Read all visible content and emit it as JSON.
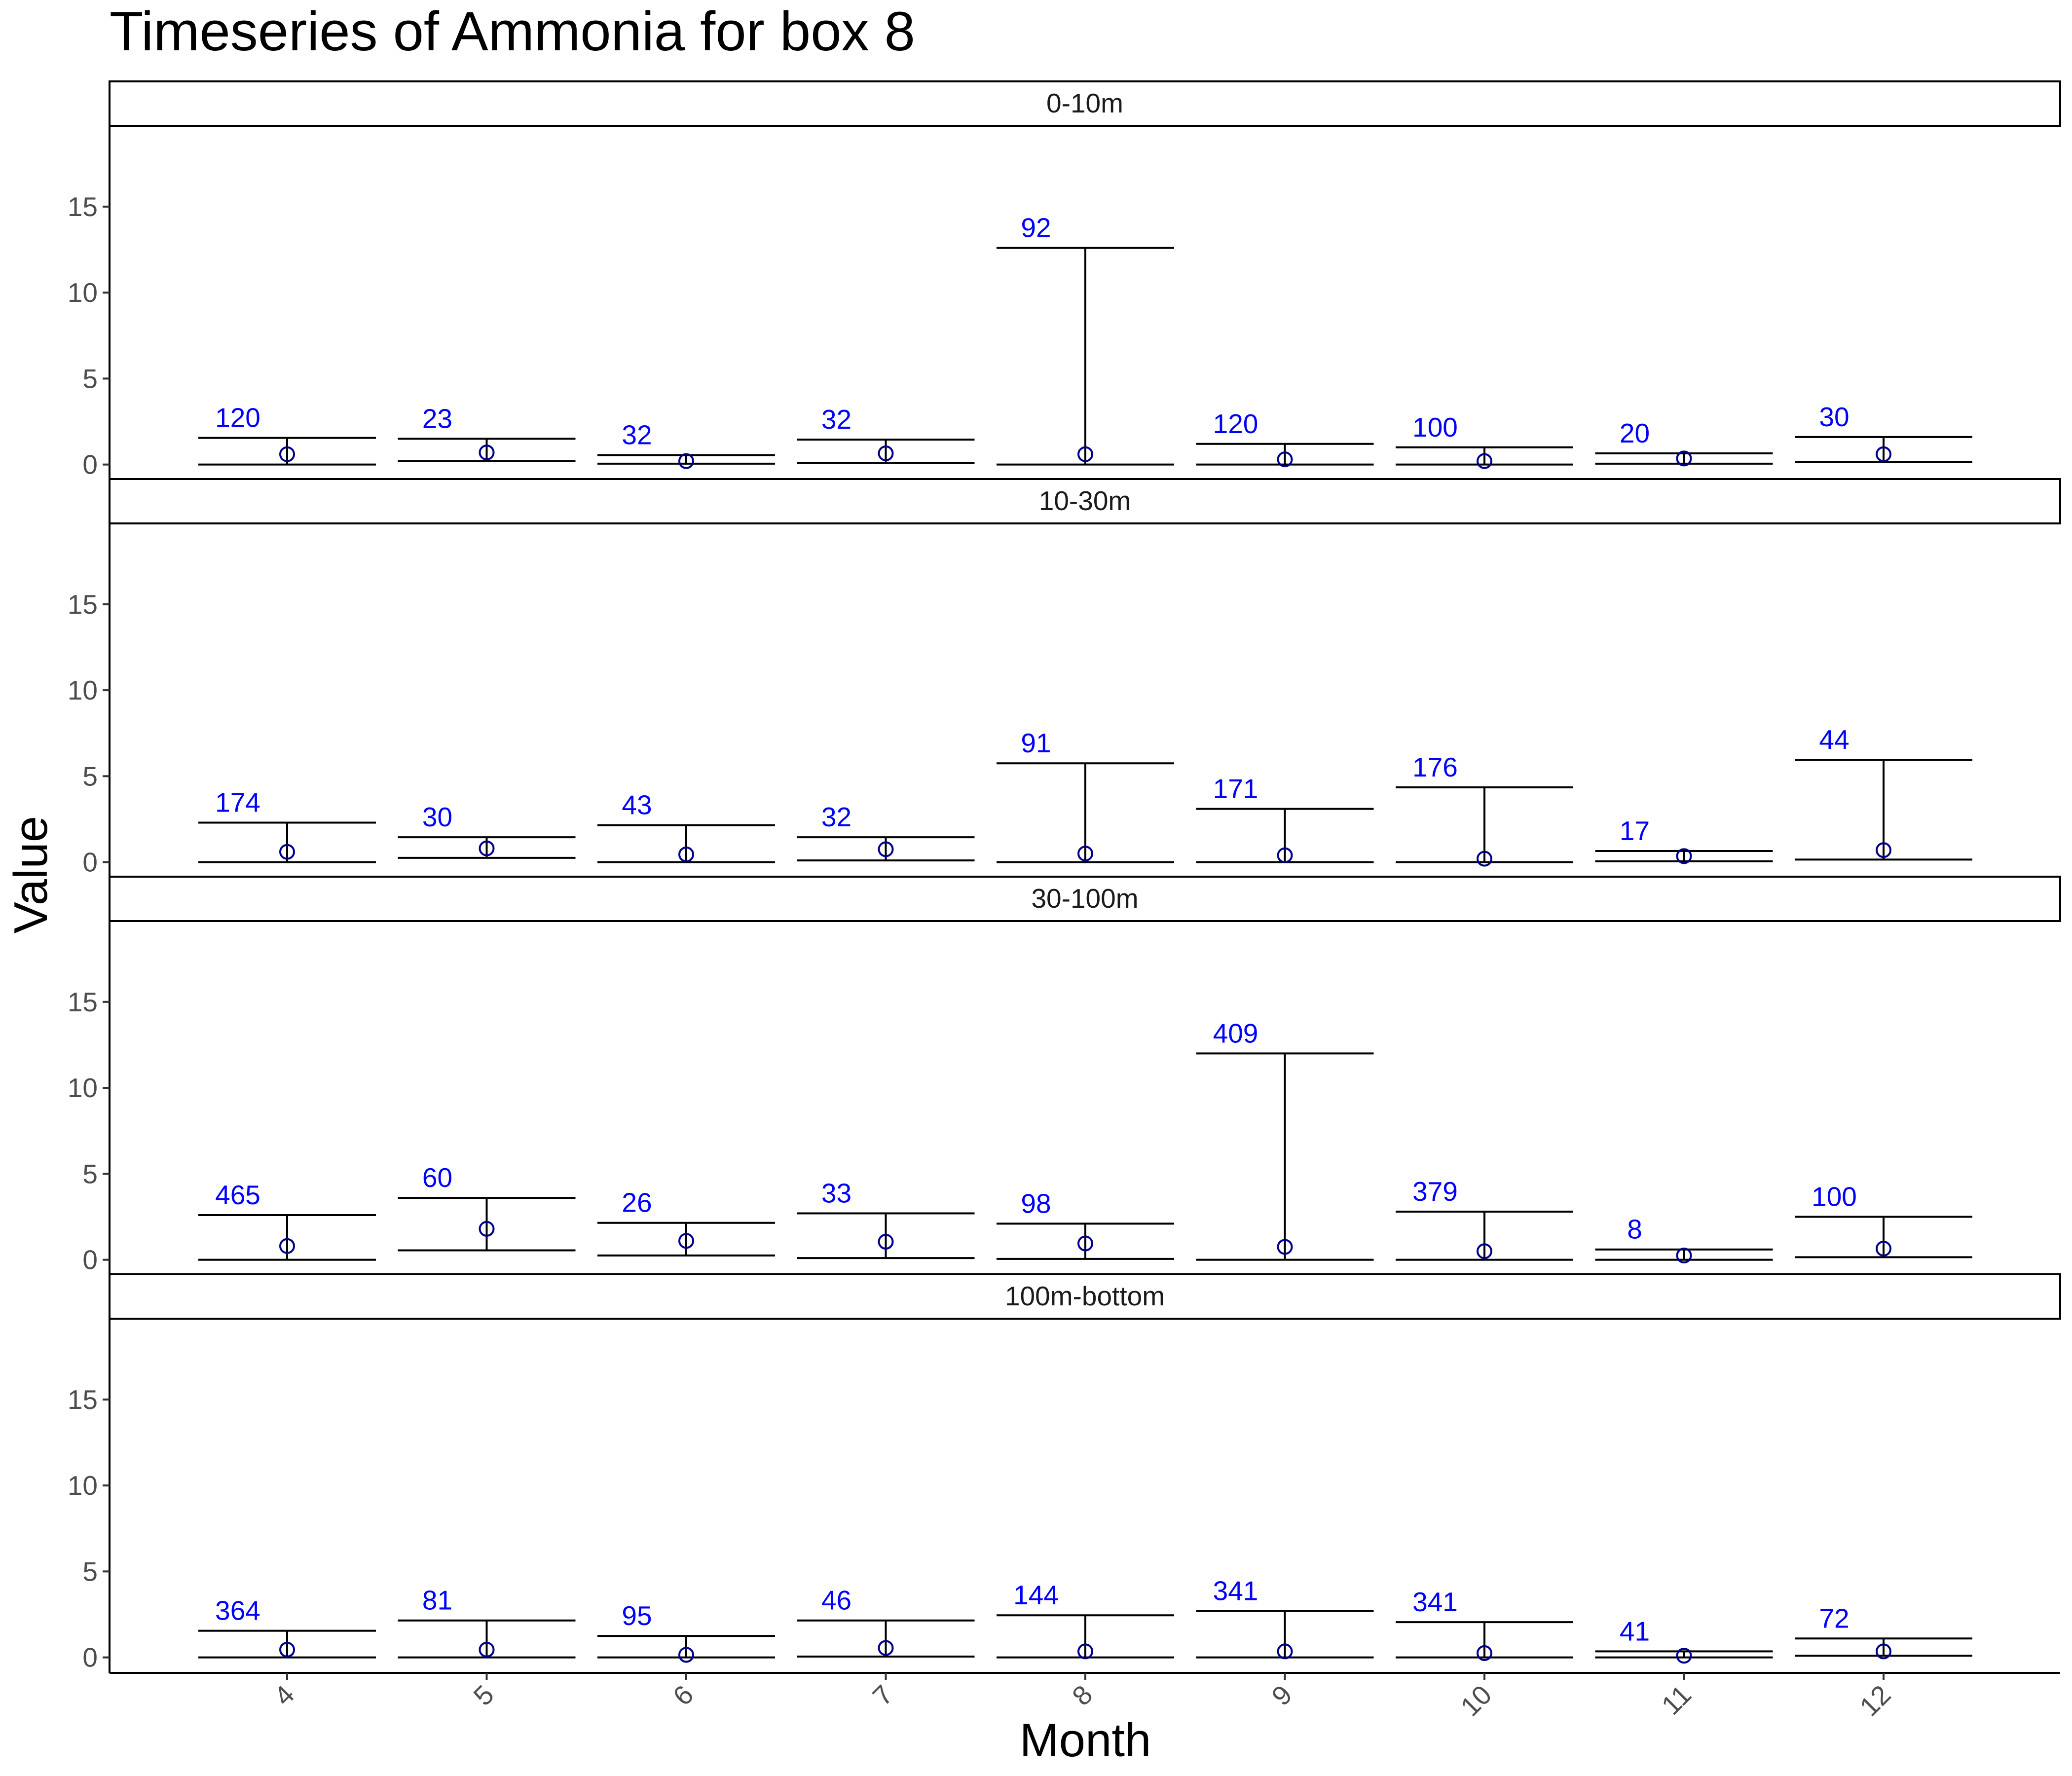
{
  "chart_data": {
    "type": "errorbar",
    "title": "Timeseries of  Ammonia  for box  8",
    "xlabel": "Month",
    "ylabel": "Value",
    "x_categories": [
      "4",
      "5",
      "6",
      "7",
      "8",
      "9",
      "10",
      "11",
      "12"
    ],
    "ylim": [
      -0.9,
      19.7
    ],
    "y_ticks": [
      0,
      5,
      10,
      15
    ],
    "label_color": "#0000ff",
    "point_color": "#00008b",
    "panels": [
      {
        "label": "0-10m",
        "points": [
          {
            "month": "4",
            "n": "120",
            "lower": 0.0,
            "upper": 1.55,
            "mean": 0.6
          },
          {
            "month": "5",
            "n": "23",
            "lower": 0.2,
            "upper": 1.5,
            "mean": 0.7
          },
          {
            "month": "6",
            "n": "32",
            "lower": 0.05,
            "upper": 0.55,
            "mean": 0.2
          },
          {
            "month": "7",
            "n": "32",
            "lower": 0.1,
            "upper": 1.45,
            "mean": 0.65
          },
          {
            "month": "8",
            "n": "92",
            "lower": 0.0,
            "upper": 12.6,
            "mean": 0.6
          },
          {
            "month": "9",
            "n": "120",
            "lower": 0.0,
            "upper": 1.2,
            "mean": 0.3
          },
          {
            "month": "10",
            "n": "100",
            "lower": 0.0,
            "upper": 1.0,
            "mean": 0.2
          },
          {
            "month": "11",
            "n": "20",
            "lower": 0.05,
            "upper": 0.65,
            "mean": 0.35
          },
          {
            "month": "12",
            "n": "30",
            "lower": 0.15,
            "upper": 1.6,
            "mean": 0.6
          }
        ]
      },
      {
        "label": "10-30m",
        "points": [
          {
            "month": "4",
            "n": "174",
            "lower": 0.0,
            "upper": 2.3,
            "mean": 0.6
          },
          {
            "month": "5",
            "n": "30",
            "lower": 0.25,
            "upper": 1.45,
            "mean": 0.8
          },
          {
            "month": "6",
            "n": "43",
            "lower": 0.0,
            "upper": 2.15,
            "mean": 0.45
          },
          {
            "month": "7",
            "n": "32",
            "lower": 0.1,
            "upper": 1.45,
            "mean": 0.75
          },
          {
            "month": "8",
            "n": "91",
            "lower": 0.0,
            "upper": 5.75,
            "mean": 0.5
          },
          {
            "month": "9",
            "n": "171",
            "lower": 0.0,
            "upper": 3.1,
            "mean": 0.4
          },
          {
            "month": "10",
            "n": "176",
            "lower": 0.0,
            "upper": 4.35,
            "mean": 0.2
          },
          {
            "month": "11",
            "n": "17",
            "lower": 0.05,
            "upper": 0.65,
            "mean": 0.35
          },
          {
            "month": "12",
            "n": "44",
            "lower": 0.15,
            "upper": 5.95,
            "mean": 0.7
          }
        ]
      },
      {
        "label": "30-100m",
        "points": [
          {
            "month": "4",
            "n": "465",
            "lower": 0.0,
            "upper": 2.6,
            "mean": 0.8
          },
          {
            "month": "5",
            "n": "60",
            "lower": 0.55,
            "upper": 3.6,
            "mean": 1.8
          },
          {
            "month": "6",
            "n": "26",
            "lower": 0.25,
            "upper": 2.15,
            "mean": 1.1
          },
          {
            "month": "7",
            "n": "33",
            "lower": 0.1,
            "upper": 2.7,
            "mean": 1.05
          },
          {
            "month": "8",
            "n": "98",
            "lower": 0.05,
            "upper": 2.1,
            "mean": 0.95
          },
          {
            "month": "9",
            "n": "409",
            "lower": 0.0,
            "upper": 12.0,
            "mean": 0.75
          },
          {
            "month": "10",
            "n": "379",
            "lower": 0.0,
            "upper": 2.8,
            "mean": 0.5
          },
          {
            "month": "11",
            "n": "8",
            "lower": 0.0,
            "upper": 0.6,
            "mean": 0.25
          },
          {
            "month": "12",
            "n": "100",
            "lower": 0.15,
            "upper": 2.5,
            "mean": 0.65
          }
        ]
      },
      {
        "label": "100m-bottom",
        "points": [
          {
            "month": "4",
            "n": "364",
            "lower": 0.0,
            "upper": 1.55,
            "mean": 0.45
          },
          {
            "month": "5",
            "n": "81",
            "lower": 0.0,
            "upper": 2.15,
            "mean": 0.45
          },
          {
            "month": "6",
            "n": "95",
            "lower": 0.0,
            "upper": 1.25,
            "mean": 0.15
          },
          {
            "month": "7",
            "n": "46",
            "lower": 0.05,
            "upper": 2.15,
            "mean": 0.55
          },
          {
            "month": "8",
            "n": "144",
            "lower": 0.0,
            "upper": 2.45,
            "mean": 0.35
          },
          {
            "month": "9",
            "n": "341",
            "lower": 0.0,
            "upper": 2.7,
            "mean": 0.35
          },
          {
            "month": "10",
            "n": "341",
            "lower": 0.0,
            "upper": 2.05,
            "mean": 0.25
          },
          {
            "month": "11",
            "n": "41",
            "lower": 0.0,
            "upper": 0.35,
            "mean": 0.1
          },
          {
            "month": "12",
            "n": "72",
            "lower": 0.1,
            "upper": 1.1,
            "mean": 0.35
          }
        ]
      }
    ]
  }
}
